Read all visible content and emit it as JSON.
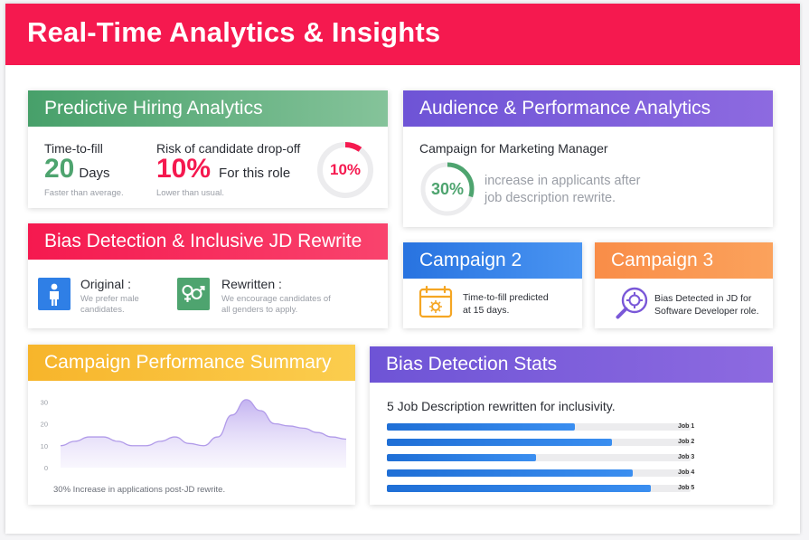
{
  "header": {
    "title": "Real-Time Analytics & Insights"
  },
  "predictive": {
    "title": "Predictive Hiring Analytics",
    "ttf_label": "Time-to-fill",
    "ttf_value": "20",
    "ttf_unit": "Days",
    "ttf_note": "Faster than average.",
    "risk_label": "Risk of candidate drop-off",
    "risk_value": "10%",
    "risk_suffix": "For this role",
    "risk_note": "Lower than usual.",
    "ring_value": "10%",
    "ring_fraction": 0.1
  },
  "audience": {
    "title": "Audience & Performance Analytics",
    "campaign": "Campaign for Marketing Manager",
    "ring_value": "30%",
    "ring_fraction": 0.3,
    "text_line1": "increase in applicants after",
    "text_line2": "job description rewrite."
  },
  "bias": {
    "title": "Bias Detection & Inclusive JD Rewrite",
    "original_label": "Original :",
    "original_line1": "We prefer male",
    "original_line2": "candidates.",
    "rewritten_label": "Rewritten :",
    "rewritten_line1": "We encourage candidates of",
    "rewritten_line2": "all genders to apply."
  },
  "campaign2": {
    "title": "Campaign 2",
    "line1": "Time-to-fill predicted",
    "line2": "at 15 days."
  },
  "campaign3": {
    "title": "Campaign 3",
    "line1": "Bias Detected in JD for",
    "line2": "Software Developer role."
  },
  "summary": {
    "title": "Campaign Performance Summary",
    "caption": "30% Increase in applications post-JD rewrite."
  },
  "stats": {
    "title": "Bias Detection Stats",
    "subtitle": "5 Job Description rewritten for inclusivity."
  },
  "colors": {
    "header": "#f5194f",
    "green": "#4ea46f",
    "red": "#f5194f",
    "purple": "#7a58d8",
    "blue": "#2f7fe6",
    "orange": "#f98d48",
    "yellow": "#f7bb2f"
  },
  "chart_data": [
    {
      "type": "area",
      "title": "",
      "x": [
        0,
        1,
        2,
        3,
        4,
        5,
        6,
        7,
        8,
        9,
        10,
        11,
        12,
        13,
        14,
        15,
        16,
        17,
        18,
        19,
        20
      ],
      "values": [
        10,
        12,
        14,
        14,
        12,
        10,
        10,
        12,
        14,
        11,
        10,
        14,
        24,
        31,
        26,
        20,
        19,
        18,
        16,
        14,
        13
      ],
      "yticks": [
        "0",
        "10",
        "20",
        "30"
      ],
      "ylim": [
        0,
        33
      ],
      "grid": false
    },
    {
      "type": "bar",
      "orientation": "horizontal",
      "categories": [
        "Job 1",
        "Job 2",
        "Job 3",
        "Job 4",
        "Job 5"
      ],
      "values": [
        0.62,
        0.74,
        0.49,
        0.81,
        0.87
      ],
      "xlim": [
        0,
        1
      ]
    }
  ]
}
